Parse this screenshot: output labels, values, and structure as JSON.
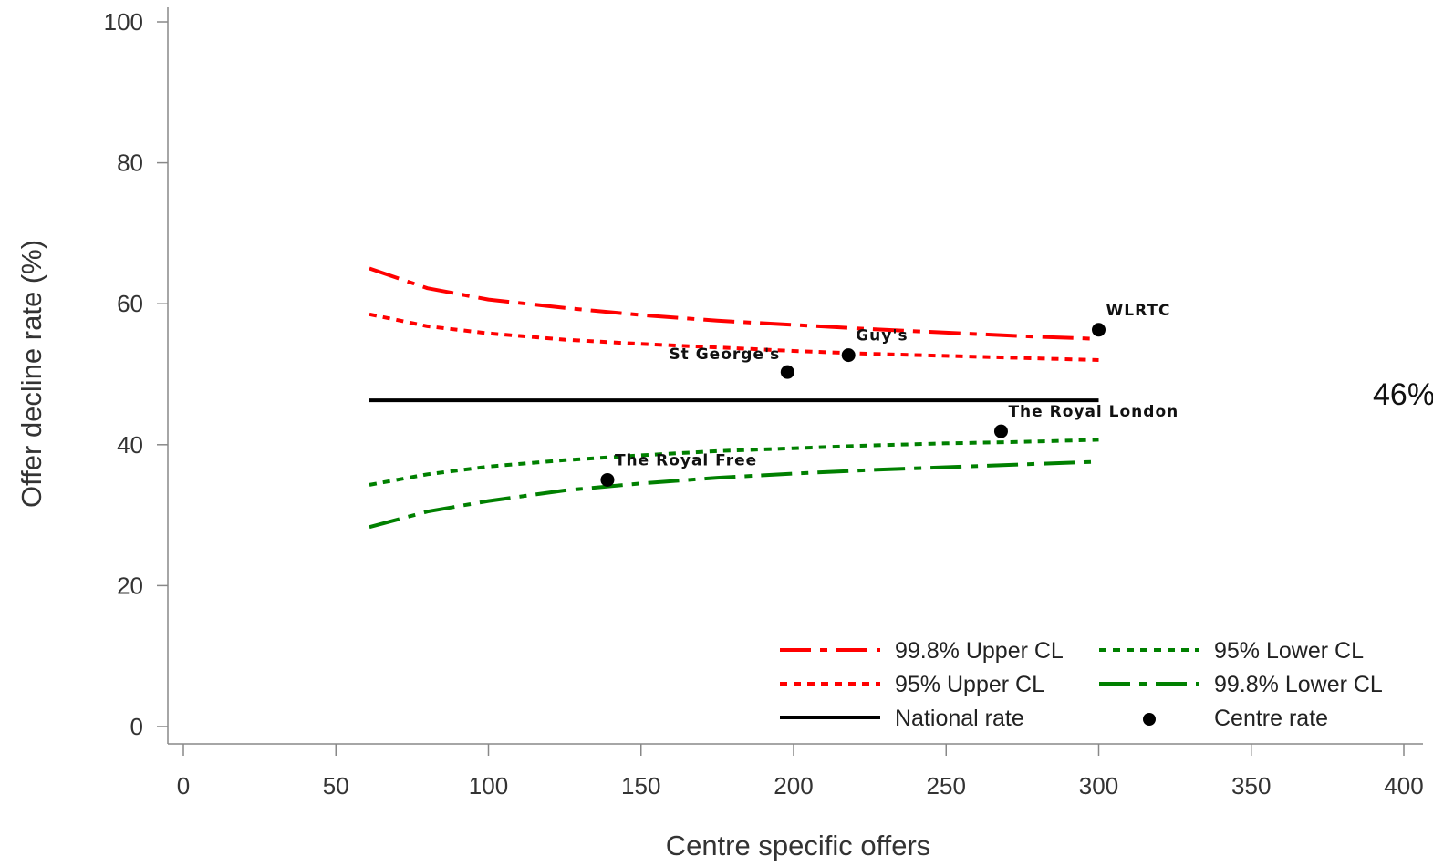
{
  "chart_data": {
    "type": "scatter",
    "title": "",
    "xlabel": "Centre specific offers",
    "ylabel": "Offer decline rate (%)",
    "xlim": [
      0,
      400
    ],
    "ylim": [
      0,
      100
    ],
    "xticks": [
      0,
      50,
      100,
      150,
      200,
      250,
      300,
      350,
      400
    ],
    "yticks": [
      0,
      20,
      40,
      60,
      80,
      100
    ],
    "xtick_labels": [
      "0",
      "50",
      "100",
      "150",
      "200",
      "250",
      "300",
      "350",
      "400"
    ],
    "ytick_labels": [
      "0",
      "20",
      "40",
      "60",
      "80",
      "100"
    ],
    "grid": false,
    "legend_position": "bottom-right",
    "annotation": "46%",
    "series": [
      {
        "name": "99.8% Upper CL",
        "kind": "line",
        "color": "#ff0000",
        "dash": "long-dash-dot",
        "x": [
          61,
          80,
          100,
          125,
          150,
          175,
          200,
          225,
          250,
          275,
          300
        ],
        "y": [
          65.0,
          62.2,
          60.6,
          59.4,
          58.4,
          57.6,
          57.0,
          56.4,
          55.9,
          55.4,
          55.0
        ]
      },
      {
        "name": "95% Upper CL",
        "kind": "line",
        "color": "#ff0000",
        "dash": "short-dash",
        "x": [
          61,
          80,
          100,
          125,
          150,
          175,
          200,
          225,
          250,
          275,
          300
        ],
        "y": [
          58.5,
          56.8,
          55.8,
          54.9,
          54.3,
          53.8,
          53.3,
          52.9,
          52.6,
          52.3,
          52.0
        ]
      },
      {
        "name": "National rate",
        "kind": "line",
        "color": "#000000",
        "dash": "solid",
        "x": [
          61,
          300
        ],
        "y": [
          46.3,
          46.3
        ]
      },
      {
        "name": "95% Lower CL",
        "kind": "line",
        "color": "#008000",
        "dash": "short-dash",
        "x": [
          61,
          80,
          100,
          125,
          150,
          175,
          200,
          225,
          250,
          275,
          300
        ],
        "y": [
          34.3,
          35.8,
          36.9,
          37.8,
          38.5,
          39.1,
          39.5,
          39.9,
          40.2,
          40.4,
          40.7
        ]
      },
      {
        "name": "99.8% Lower CL",
        "kind": "line",
        "color": "#008000",
        "dash": "long-dash-dot",
        "x": [
          61,
          80,
          100,
          125,
          150,
          175,
          200,
          225,
          250,
          275,
          300
        ],
        "y": [
          28.3,
          30.5,
          32.0,
          33.5,
          34.5,
          35.3,
          35.9,
          36.4,
          36.8,
          37.2,
          37.6
        ]
      },
      {
        "name": "Centre rate",
        "kind": "points",
        "color": "#000000",
        "points": [
          {
            "label": "The Royal Free",
            "x": 139,
            "y": 35.0
          },
          {
            "label": "St George's",
            "x": 198,
            "y": 50.3
          },
          {
            "label": "Guy's",
            "x": 218,
            "y": 52.7
          },
          {
            "label": "The Royal London",
            "x": 268,
            "y": 41.9
          },
          {
            "label": "WLRTC",
            "x": 300,
            "y": 56.3
          }
        ]
      }
    ],
    "legend": [
      {
        "label": "99.8% Upper CL"
      },
      {
        "label": "95% Lower CL"
      },
      {
        "label": "95% Upper CL"
      },
      {
        "label": "99.8% Lower CL"
      },
      {
        "label": "National rate"
      },
      {
        "label": "Centre rate"
      }
    ]
  }
}
